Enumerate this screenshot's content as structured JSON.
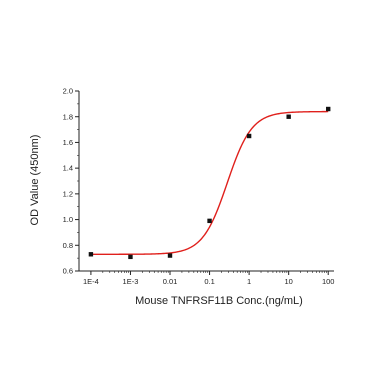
{
  "chart_data": {
    "type": "scatter",
    "title": "",
    "xlabel": "Mouse TNFRSF11B Conc.(ng/mL)",
    "ylabel": "OD Value (450nm)",
    "x_scale": "log",
    "xlim": [
      5e-05,
      140
    ],
    "ylim": [
      0.6,
      2.0
    ],
    "x_ticks": [
      0.0001,
      0.001,
      0.01,
      0.1,
      1,
      10,
      100
    ],
    "x_tick_labels": [
      "1E-4",
      "1E-3",
      "0.01",
      "0.1",
      "1",
      "10",
      "100"
    ],
    "y_ticks": [
      0.6,
      0.8,
      1.0,
      1.2,
      1.4,
      1.6,
      1.8,
      2.0
    ],
    "y_tick_labels": [
      "0.6",
      "0.8",
      "1.0",
      "1.2",
      "1.4",
      "1.6",
      "1.8",
      "2.0"
    ],
    "grid": false,
    "points": [
      {
        "x": 0.0001,
        "y": 0.73
      },
      {
        "x": 0.001,
        "y": 0.71
      },
      {
        "x": 0.01,
        "y": 0.72
      },
      {
        "x": 0.1,
        "y": 0.99
      },
      {
        "x": 1,
        "y": 1.65
      },
      {
        "x": 10,
        "y": 1.8
      },
      {
        "x": 100,
        "y": 1.86
      }
    ],
    "fit_curve": {
      "model": "4PL",
      "bottom": 0.73,
      "top": 1.84,
      "ec50": 0.28,
      "hill": 1.4
    },
    "colors": {
      "points": "#111111",
      "curve": "#e0201c",
      "axis": "#222222"
    }
  }
}
